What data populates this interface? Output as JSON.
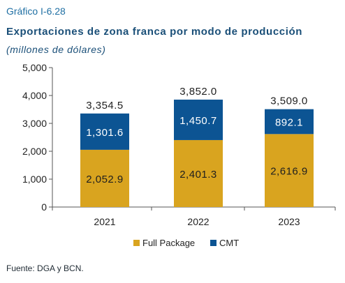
{
  "header": {
    "figure_label": "Gráfico I-6.28",
    "title": "Exportaciones de zona franca por modo de producción",
    "subtitle": "(millones de dólares)"
  },
  "footer": {
    "source": "Fuente: DGA y BCN."
  },
  "colors": {
    "full_package": "#d9a41f",
    "cmt": "#0c5493",
    "accent_text": "#1a4f78"
  },
  "chart_data": {
    "type": "bar",
    "stacked": true,
    "categories": [
      "2021",
      "2022",
      "2023"
    ],
    "series": [
      {
        "name": "Full Package",
        "values": [
          2052.9,
          2401.3,
          2616.9
        ],
        "labels": [
          "2,052.9",
          "2,401.3",
          "2,616.9"
        ]
      },
      {
        "name": "CMT",
        "values": [
          1301.6,
          1450.7,
          892.1
        ],
        "labels": [
          "1,301.6",
          "1,450.7",
          "892.1"
        ]
      }
    ],
    "totals": [
      3354.5,
      3852.0,
      3509.0
    ],
    "total_labels": [
      "3,354.5",
      "3,852.0",
      "3,509.0"
    ],
    "ylim": [
      0,
      5000
    ],
    "yticks": [
      0,
      1000,
      2000,
      3000,
      4000,
      5000
    ],
    "ytick_labels": [
      "0",
      "1,000",
      "2,000",
      "3,000",
      "4,000",
      "5,000"
    ],
    "legend": "bottom-center",
    "grid": false
  }
}
